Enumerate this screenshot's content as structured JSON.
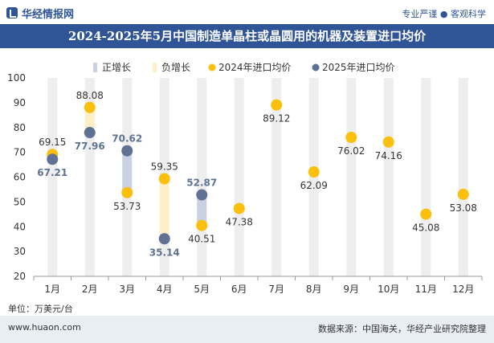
{
  "header": {
    "brand": "华经情报网",
    "slogan": "专业严谨 ● 客观科学"
  },
  "title": "2024-2025年5月中国制造单晶柱或晶圆用的机器及装置进口均价",
  "legend": {
    "pos": "正增长",
    "neg": "负增长",
    "s2024": "2024年进口均价",
    "s2025": "2025年进口均价"
  },
  "footer": {
    "unit": "单位：万美元/台",
    "site": "www.huaon.com",
    "source": "数据来源：中国海关，华经产业研究院整理"
  },
  "colors": {
    "series2024": "#fbbf0d",
    "series2025": "#5f7294",
    "positive": "#c9d1e3",
    "negative": "#fdefc7",
    "column": "#eeeeee",
    "titlebar": "#2f5597"
  },
  "chart_data": {
    "type": "dumbbell",
    "categories": [
      "1月",
      "2月",
      "3月",
      "4月",
      "5月",
      "6月",
      "7月",
      "8月",
      "9月",
      "10月",
      "11月",
      "12月"
    ],
    "ylim": [
      20,
      100
    ],
    "yticks": [
      20,
      30,
      40,
      50,
      60,
      70,
      80,
      90,
      100
    ],
    "series": [
      {
        "name": "2024年进口均价",
        "values": [
          69.15,
          88.08,
          53.73,
          59.35,
          40.51,
          47.38,
          89.12,
          62.09,
          76.02,
          74.16,
          45.08,
          53.08
        ]
      },
      {
        "name": "2025年进口均价",
        "values": [
          67.21,
          77.96,
          70.62,
          35.14,
          52.87,
          null,
          null,
          null,
          null,
          null,
          null,
          null
        ]
      }
    ]
  }
}
